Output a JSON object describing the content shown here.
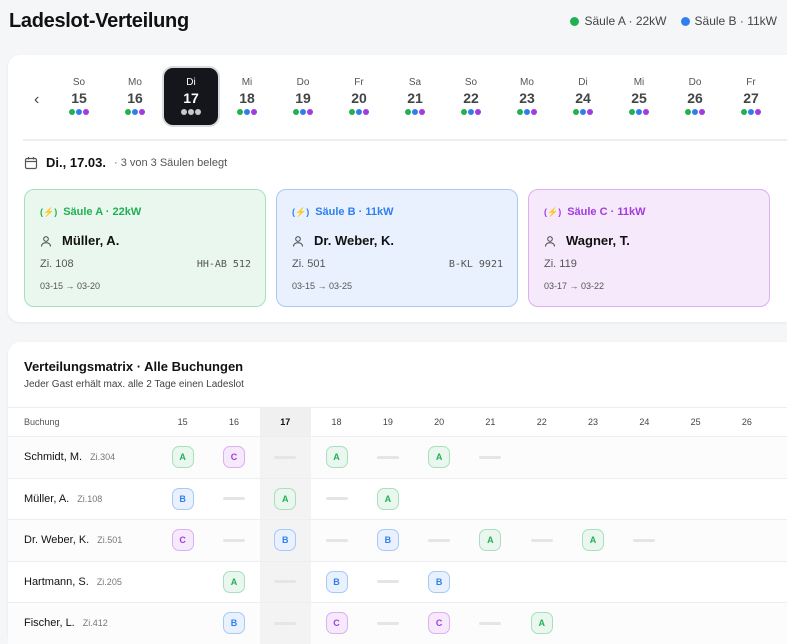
{
  "title": "Ladeslot-Verteilung",
  "colors": {
    "A": "#22b055",
    "B": "#2f80ed",
    "C": "#a23be0"
  },
  "legend": [
    {
      "label": "Säule A · 22kW",
      "color": "#22b055"
    },
    {
      "label": "Säule B · 11kW",
      "color": "#2f80ed"
    }
  ],
  "days": [
    {
      "wd": "So",
      "num": "15"
    },
    {
      "wd": "Mo",
      "num": "16"
    },
    {
      "wd": "Di",
      "num": "17",
      "selected": true
    },
    {
      "wd": "Mi",
      "num": "18"
    },
    {
      "wd": "Do",
      "num": "19"
    },
    {
      "wd": "Fr",
      "num": "20"
    },
    {
      "wd": "Sa",
      "num": "21"
    },
    {
      "wd": "So",
      "num": "22"
    },
    {
      "wd": "Mo",
      "num": "23"
    },
    {
      "wd": "Di",
      "num": "24"
    },
    {
      "wd": "Mi",
      "num": "25"
    },
    {
      "wd": "Do",
      "num": "26"
    },
    {
      "wd": "Fr",
      "num": "27"
    }
  ],
  "selected_date": "Di., 17.03.",
  "occupancy": "· 3 von 3 Säulen belegt",
  "slots": [
    {
      "station": "Säule A · 22kW",
      "key": "A",
      "guest": "Müller, A.",
      "room": "Zi. 108",
      "plate": "HH-AB 512",
      "dates": "03-15 → 03-20"
    },
    {
      "station": "Säule B · 11kW",
      "key": "B",
      "guest": "Dr. Weber, K.",
      "room": "Zi. 501",
      "plate": "B-KL 9921",
      "dates": "03-15 → 03-25"
    },
    {
      "station": "Säule C · 11kW",
      "key": "C",
      "guest": "Wagner, T.",
      "room": "Zi. 119",
      "plate": "",
      "dates": "03-17 → 03-22"
    }
  ],
  "matrix": {
    "title": "Verteilungsmatrix · Alle Buchungen",
    "subtitle": "Jeder Gast erhält max. alle 2 Tage einen Ladeslot",
    "col_header": "Buchung",
    "days": [
      "15",
      "16",
      "17",
      "18",
      "19",
      "20",
      "21",
      "22",
      "23",
      "24",
      "25",
      "26"
    ],
    "today": "17",
    "rows": [
      {
        "name": "Schmidt, M.",
        "room": "Zi.304",
        "cells": [
          "A",
          "C",
          "-",
          "A",
          "-",
          "A",
          "-",
          "",
          "",
          "",
          "",
          ""
        ]
      },
      {
        "name": "Müller, A.",
        "room": "Zi.108",
        "cells": [
          "B",
          "-",
          "A",
          "-",
          "A",
          "",
          "",
          "",
          "",
          "",
          "",
          ""
        ]
      },
      {
        "name": "Dr. Weber, K.",
        "room": "Zi.501",
        "cells": [
          "C",
          "-",
          "B",
          "-",
          "B",
          "-",
          "A",
          "-",
          "A",
          "-",
          "",
          ""
        ]
      },
      {
        "name": "Hartmann, S.",
        "room": "Zi.205",
        "cells": [
          "",
          "A",
          "-",
          "B",
          "-",
          "B",
          "",
          "",
          "",
          "",
          "",
          ""
        ]
      },
      {
        "name": "Fischer, L.",
        "room": "Zi.412",
        "cells": [
          "",
          "B",
          "-",
          "C",
          "-",
          "C",
          "-",
          "A",
          "",
          "",
          "",
          ""
        ]
      }
    ]
  }
}
